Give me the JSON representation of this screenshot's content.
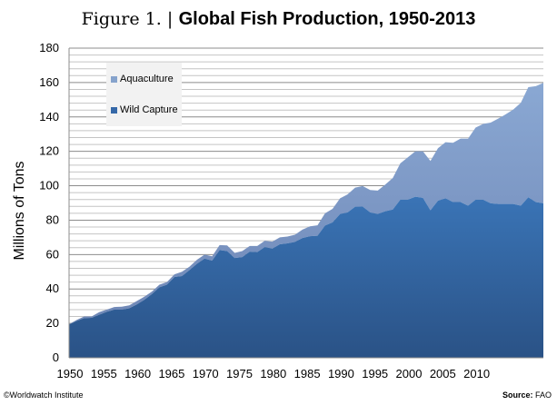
{
  "title": {
    "prefix": "Figure 1. |",
    "main": "Global Fish Production, 1950-2013"
  },
  "footer": {
    "credit": "©Worldwatch  Institute",
    "source_label": "Source:",
    "source_value": "FAO"
  },
  "colors": {
    "wild_capture": "#3568a8",
    "aquaculture": "#86a3cc",
    "legend_bg": "#f2f2f2"
  },
  "chart_data": {
    "type": "area",
    "stacked": true,
    "title": "Global Fish Production, 1950-2013",
    "xlabel": "",
    "ylabel": "Millions of Tons",
    "xlim": [
      1950,
      2013
    ],
    "ylim": [
      0,
      180
    ],
    "y_ticks": [
      0,
      20,
      40,
      60,
      80,
      100,
      120,
      140,
      160,
      180
    ],
    "x_ticks": [
      1950,
      1955,
      1960,
      1965,
      1970,
      1975,
      1980,
      1985,
      1990,
      1995,
      2000,
      2005,
      2010
    ],
    "grid": true,
    "legend": "top-left",
    "x": [
      1950,
      1951,
      1952,
      1953,
      1954,
      1955,
      1956,
      1957,
      1958,
      1959,
      1960,
      1961,
      1962,
      1963,
      1964,
      1965,
      1966,
      1967,
      1968,
      1969,
      1970,
      1971,
      1972,
      1973,
      1974,
      1975,
      1976,
      1977,
      1978,
      1979,
      1980,
      1981,
      1982,
      1983,
      1984,
      1985,
      1986,
      1987,
      1988,
      1989,
      1990,
      1991,
      1992,
      1993,
      1994,
      1995,
      1996,
      1997,
      1998,
      1999,
      2000,
      2001,
      2002,
      2003,
      2004,
      2005,
      2006,
      2007,
      2008,
      2009,
      2010,
      2011,
      2012,
      2013
    ],
    "series": [
      {
        "name": "Wild Capture",
        "values": [
          19.3,
          21.4,
          23,
          23.2,
          25,
          26.7,
          28,
          28,
          28.8,
          31,
          33.7,
          37,
          41,
          42.5,
          47,
          47.5,
          51,
          54.7,
          57.7,
          56.5,
          62.6,
          62,
          58,
          58.5,
          61.7,
          61.4,
          64.4,
          63.5,
          66,
          66.5,
          67.4,
          69.6,
          70.7,
          70.9,
          76.9,
          78.7,
          83.6,
          84.5,
          87.8,
          87.9,
          84.5,
          83.6,
          85.2,
          86.2,
          91.9,
          91.9,
          93.6,
          93,
          85.7,
          91.3,
          92.7,
          90.5,
          90.5,
          88.4,
          91.9,
          91.9,
          89.8,
          89.4,
          89.4,
          89.4,
          88.4,
          93.3,
          90.5,
          89.8
        ]
      },
      {
        "name": "Aquaculture",
        "values": [
          0.2,
          0.6,
          1,
          0.8,
          1.5,
          1.3,
          1.5,
          1.7,
          1.7,
          2,
          1.8,
          1.5,
          1.5,
          1.5,
          1.5,
          2.5,
          2,
          2.3,
          2.3,
          2.5,
          2.9,
          3.3,
          3,
          3.5,
          3.3,
          3.6,
          3.6,
          4,
          4,
          4,
          4.1,
          4.9,
          5.7,
          6.1,
          7.1,
          7.9,
          9.1,
          10.5,
          11.1,
          11.9,
          13,
          13.6,
          15.5,
          18.3,
          21.1,
          24.6,
          26.4,
          27,
          28.7,
          30.5,
          32.6,
          34.5,
          36.9,
          39,
          41.9,
          44,
          46.9,
          49.6,
          52.1,
          54.9,
          59.8,
          64,
          67.4,
          70
        ]
      }
    ]
  }
}
